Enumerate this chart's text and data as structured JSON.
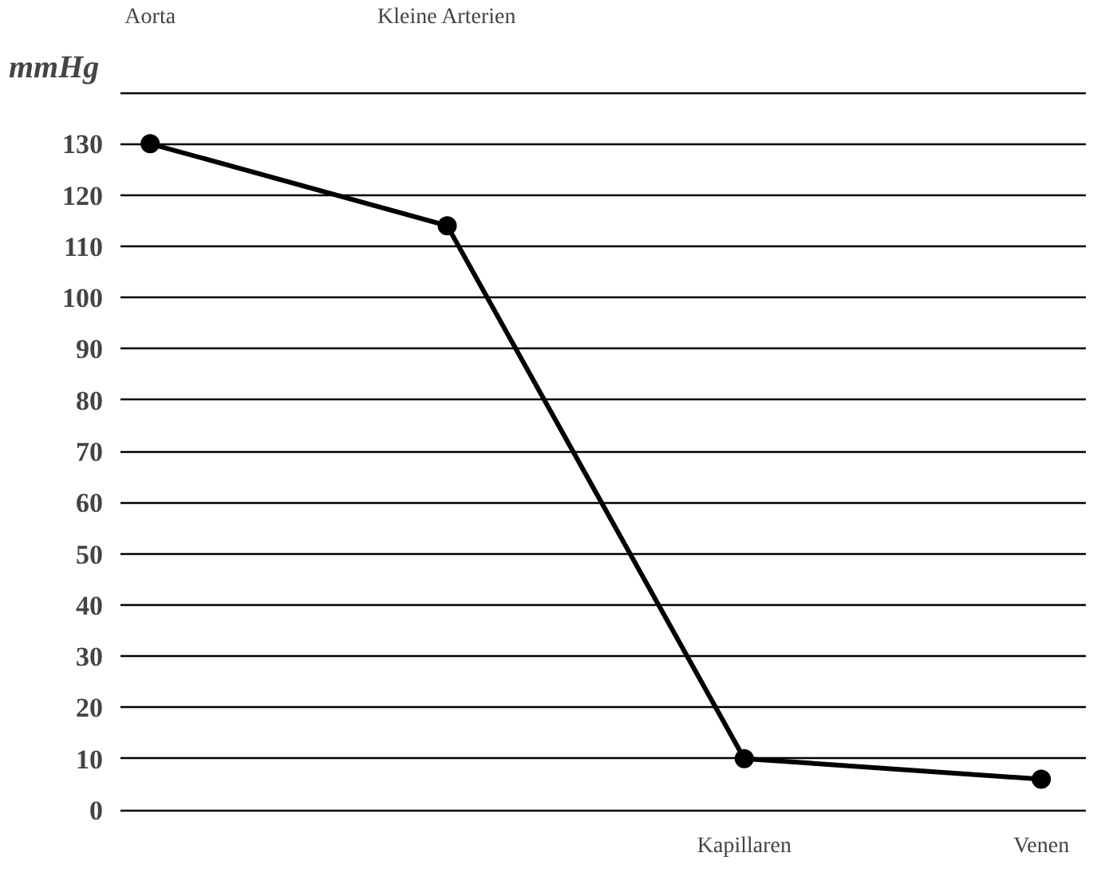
{
  "chart_data": {
    "type": "line",
    "categories": [
      "Aorta",
      "Kleine Arterien",
      "Kapillaren",
      "Venen"
    ],
    "series": [
      {
        "color": "#000000",
        "values": [
          130,
          114,
          10,
          6
        ]
      }
    ],
    "ylabel": "mmHg",
    "ylim": [
      0,
      140
    ],
    "yticks": [
      0,
      10,
      20,
      30,
      40,
      50,
      60,
      70,
      80,
      90,
      100,
      110,
      120,
      130,
      {
        "value": 140,
        "label": null
      }
    ],
    "grid": "y",
    "marker": "circle",
    "line_style": "solid"
  }
}
